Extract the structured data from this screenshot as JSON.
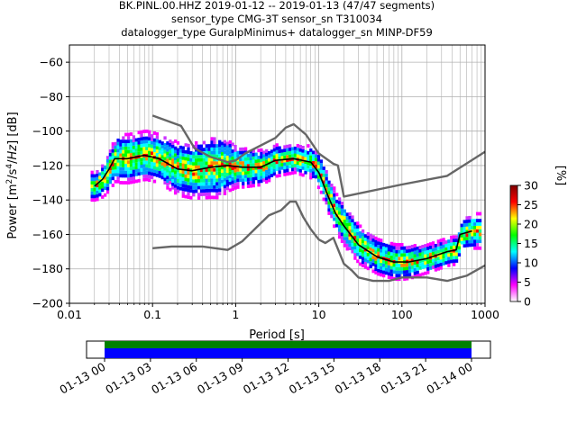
{
  "chart_data": {
    "type": "heatmap",
    "title_lines": [
      "BK.PINL.00.HHZ   2019-01-12 -- 2019-01-13  (47/47 segments)",
      "sensor_type CMG-3T sensor_sn T310034",
      "datalogger_type GuralpMinimus+ datalogger_sn MINP-DF59"
    ],
    "xlabel": "Period [s]",
    "ylabel": "Power [m²/s⁴/Hz] [dB]",
    "x_scale": "log",
    "xlim": [
      0.01,
      1000
    ],
    "ylim": [
      -200,
      -50
    ],
    "x_ticks": [
      {
        "value": 0.01,
        "label": "0.01"
      },
      {
        "value": 0.1,
        "label": "0.1"
      },
      {
        "value": 1,
        "label": "1"
      },
      {
        "value": 10,
        "label": "10"
      },
      {
        "value": 100,
        "label": "100"
      },
      {
        "value": 1000,
        "label": "1000"
      }
    ],
    "y_ticks": [
      {
        "value": -60,
        "label": "−60"
      },
      {
        "value": -80,
        "label": "−80"
      },
      {
        "value": -100,
        "label": "−100"
      },
      {
        "value": -120,
        "label": "−120"
      },
      {
        "value": -140,
        "label": "−140"
      },
      {
        "value": -160,
        "label": "−160"
      },
      {
        "value": -180,
        "label": "−180"
      },
      {
        "value": -200,
        "label": "−200"
      }
    ],
    "grid": true,
    "colorbar": {
      "label": "[%]",
      "range": [
        0,
        30
      ],
      "ticks": [
        {
          "value": 0,
          "label": "0"
        },
        {
          "value": 5,
          "label": "5"
        },
        {
          "value": 10,
          "label": "10"
        },
        {
          "value": 15,
          "label": "15"
        },
        {
          "value": 20,
          "label": "20"
        },
        {
          "value": 25,
          "label": "25"
        },
        {
          "value": 30,
          "label": "30"
        }
      ],
      "colors": [
        "#ffffff",
        "#ff00ff",
        "#0000ff",
        "#00ffff",
        "#00ff00",
        "#ffff00",
        "#ff0000",
        "#800000"
      ]
    },
    "mode_curve": [
      [
        0.02,
        -132
      ],
      [
        0.025,
        -128
      ],
      [
        0.03,
        -122
      ],
      [
        0.035,
        -116
      ],
      [
        0.05,
        -116
      ],
      [
        0.08,
        -114
      ],
      [
        0.12,
        -116
      ],
      [
        0.2,
        -122
      ],
      [
        0.3,
        -123
      ],
      [
        0.5,
        -121
      ],
      [
        0.8,
        -120
      ],
      [
        1.2,
        -121
      ],
      [
        2,
        -121
      ],
      [
        3,
        -117
      ],
      [
        5,
        -116
      ],
      [
        8,
        -118
      ],
      [
        10,
        -124
      ],
      [
        13,
        -138
      ],
      [
        16,
        -148
      ],
      [
        20,
        -155
      ],
      [
        30,
        -166
      ],
      [
        50,
        -173
      ],
      [
        80,
        -176
      ],
      [
        120,
        -176
      ],
      [
        200,
        -174
      ],
      [
        350,
        -170
      ],
      [
        450,
        -169
      ],
      [
        500,
        -160
      ],
      [
        700,
        -158
      ]
    ],
    "psd_band_width_db": [
      [
        0.02,
        8
      ],
      [
        0.04,
        14
      ],
      [
        0.1,
        14
      ],
      [
        0.3,
        16
      ],
      [
        0.6,
        18
      ],
      [
        1,
        12
      ],
      [
        2,
        10
      ],
      [
        5,
        8
      ],
      [
        10,
        10
      ],
      [
        20,
        12
      ],
      [
        50,
        10
      ],
      [
        100,
        10
      ],
      [
        200,
        8
      ],
      [
        400,
        8
      ],
      [
        700,
        10
      ]
    ],
    "model_curves": [
      {
        "id": "high-noise-model",
        "points": [
          [
            0.1,
            -91
          ],
          [
            0.22,
            -97
          ],
          [
            0.32,
            -110
          ],
          [
            0.5,
            -115
          ],
          [
            0.8,
            -118
          ],
          [
            1,
            -117
          ],
          [
            1.3,
            -113
          ],
          [
            3,
            -104
          ],
          [
            4,
            -98
          ],
          [
            5,
            -96
          ],
          [
            7,
            -102
          ],
          [
            10,
            -113
          ],
          [
            15,
            -119
          ],
          [
            17,
            -120
          ],
          [
            20,
            -138
          ],
          [
            100,
            -131
          ],
          [
            350,
            -126
          ],
          [
            1000,
            -112
          ]
        ]
      },
      {
        "id": "low-noise-model",
        "points": [
          [
            0.1,
            -168
          ],
          [
            0.17,
            -167
          ],
          [
            0.4,
            -167
          ],
          [
            0.8,
            -169
          ],
          [
            1.2,
            -164
          ],
          [
            2.5,
            -149
          ],
          [
            3.5,
            -146
          ],
          [
            4.5,
            -141
          ],
          [
            5.3,
            -141
          ],
          [
            6.5,
            -150
          ],
          [
            8,
            -157
          ],
          [
            10,
            -163
          ],
          [
            12,
            -165
          ],
          [
            15,
            -162
          ],
          [
            20,
            -177
          ],
          [
            25,
            -181
          ],
          [
            30,
            -185
          ],
          [
            45,
            -187
          ],
          [
            70,
            -187
          ],
          [
            100,
            -185
          ],
          [
            200,
            -185
          ],
          [
            350,
            -187
          ],
          [
            600,
            -184
          ],
          [
            1000,
            -178
          ]
        ]
      }
    ],
    "timeline": {
      "ticks": [
        "01-13 00",
        "01-13 03",
        "01-13 06",
        "01-13 09",
        "01-13 12",
        "01-13 15",
        "01-13 18",
        "01-13 21",
        "01-14 00"
      ],
      "bar_colors": [
        "#008000",
        "#0000ff"
      ]
    }
  }
}
